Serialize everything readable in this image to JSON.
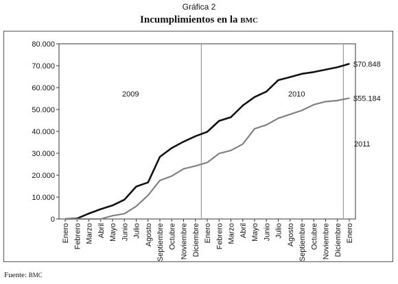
{
  "header": {
    "supertitle": "Gráfica 2",
    "title_main": "Incumplimientos en la",
    "title_abbr": "BMC"
  },
  "footer": {
    "source_label": "Fuente:",
    "source_abbr": "BMC"
  },
  "chart_data": {
    "type": "line",
    "title": "Incumplimientos en la BMC",
    "xlabel": "",
    "ylabel": "",
    "ylim": [
      0,
      80000
    ],
    "yticks": [
      "0",
      "10.000",
      "20.000",
      "30.000",
      "40.000",
      "50.000",
      "60.000",
      "70.000",
      "80.000"
    ],
    "ytick_values": [
      0,
      10000,
      20000,
      30000,
      40000,
      50000,
      60000,
      70000,
      80000
    ],
    "categories": [
      "Enero",
      "Febrero",
      "Marzo",
      "Abril",
      "Mayo",
      "Junio",
      "Julio",
      "Agosto",
      "Septiembre",
      "Octubre",
      "Noviembre",
      "Diciembre",
      "Enero",
      "Febrero",
      "Marzo",
      "Abril",
      "Mayo",
      "Junio",
      "Julio",
      "Agosto",
      "Septiembre",
      "Octubre",
      "Noviembre",
      "Diciembre",
      "Enero"
    ],
    "series": [
      {
        "color": "#111111",
        "values": [
          0,
          200,
          2500,
          4500,
          6200,
          8800,
          14800,
          16700,
          28400,
          32400,
          35300,
          37800,
          39800,
          44800,
          46500,
          51800,
          55700,
          58200,
          63400,
          64800,
          66300,
          67100,
          68200,
          69300,
          70848
        ],
        "end_label": "$70.848"
      },
      {
        "color": "#808080",
        "values": [
          0,
          0,
          0,
          0,
          1500,
          2400,
          5800,
          10800,
          17600,
          19600,
          22900,
          24200,
          25800,
          29900,
          31300,
          34200,
          41200,
          43000,
          46000,
          47800,
          49600,
          52200,
          53600,
          54100,
          55184
        ],
        "end_label": "$55.184"
      }
    ],
    "year_labels": [
      "2009",
      "2010",
      "2011"
    ],
    "year_dividers_at_index": [
      11,
      23
    ],
    "grid": false
  }
}
